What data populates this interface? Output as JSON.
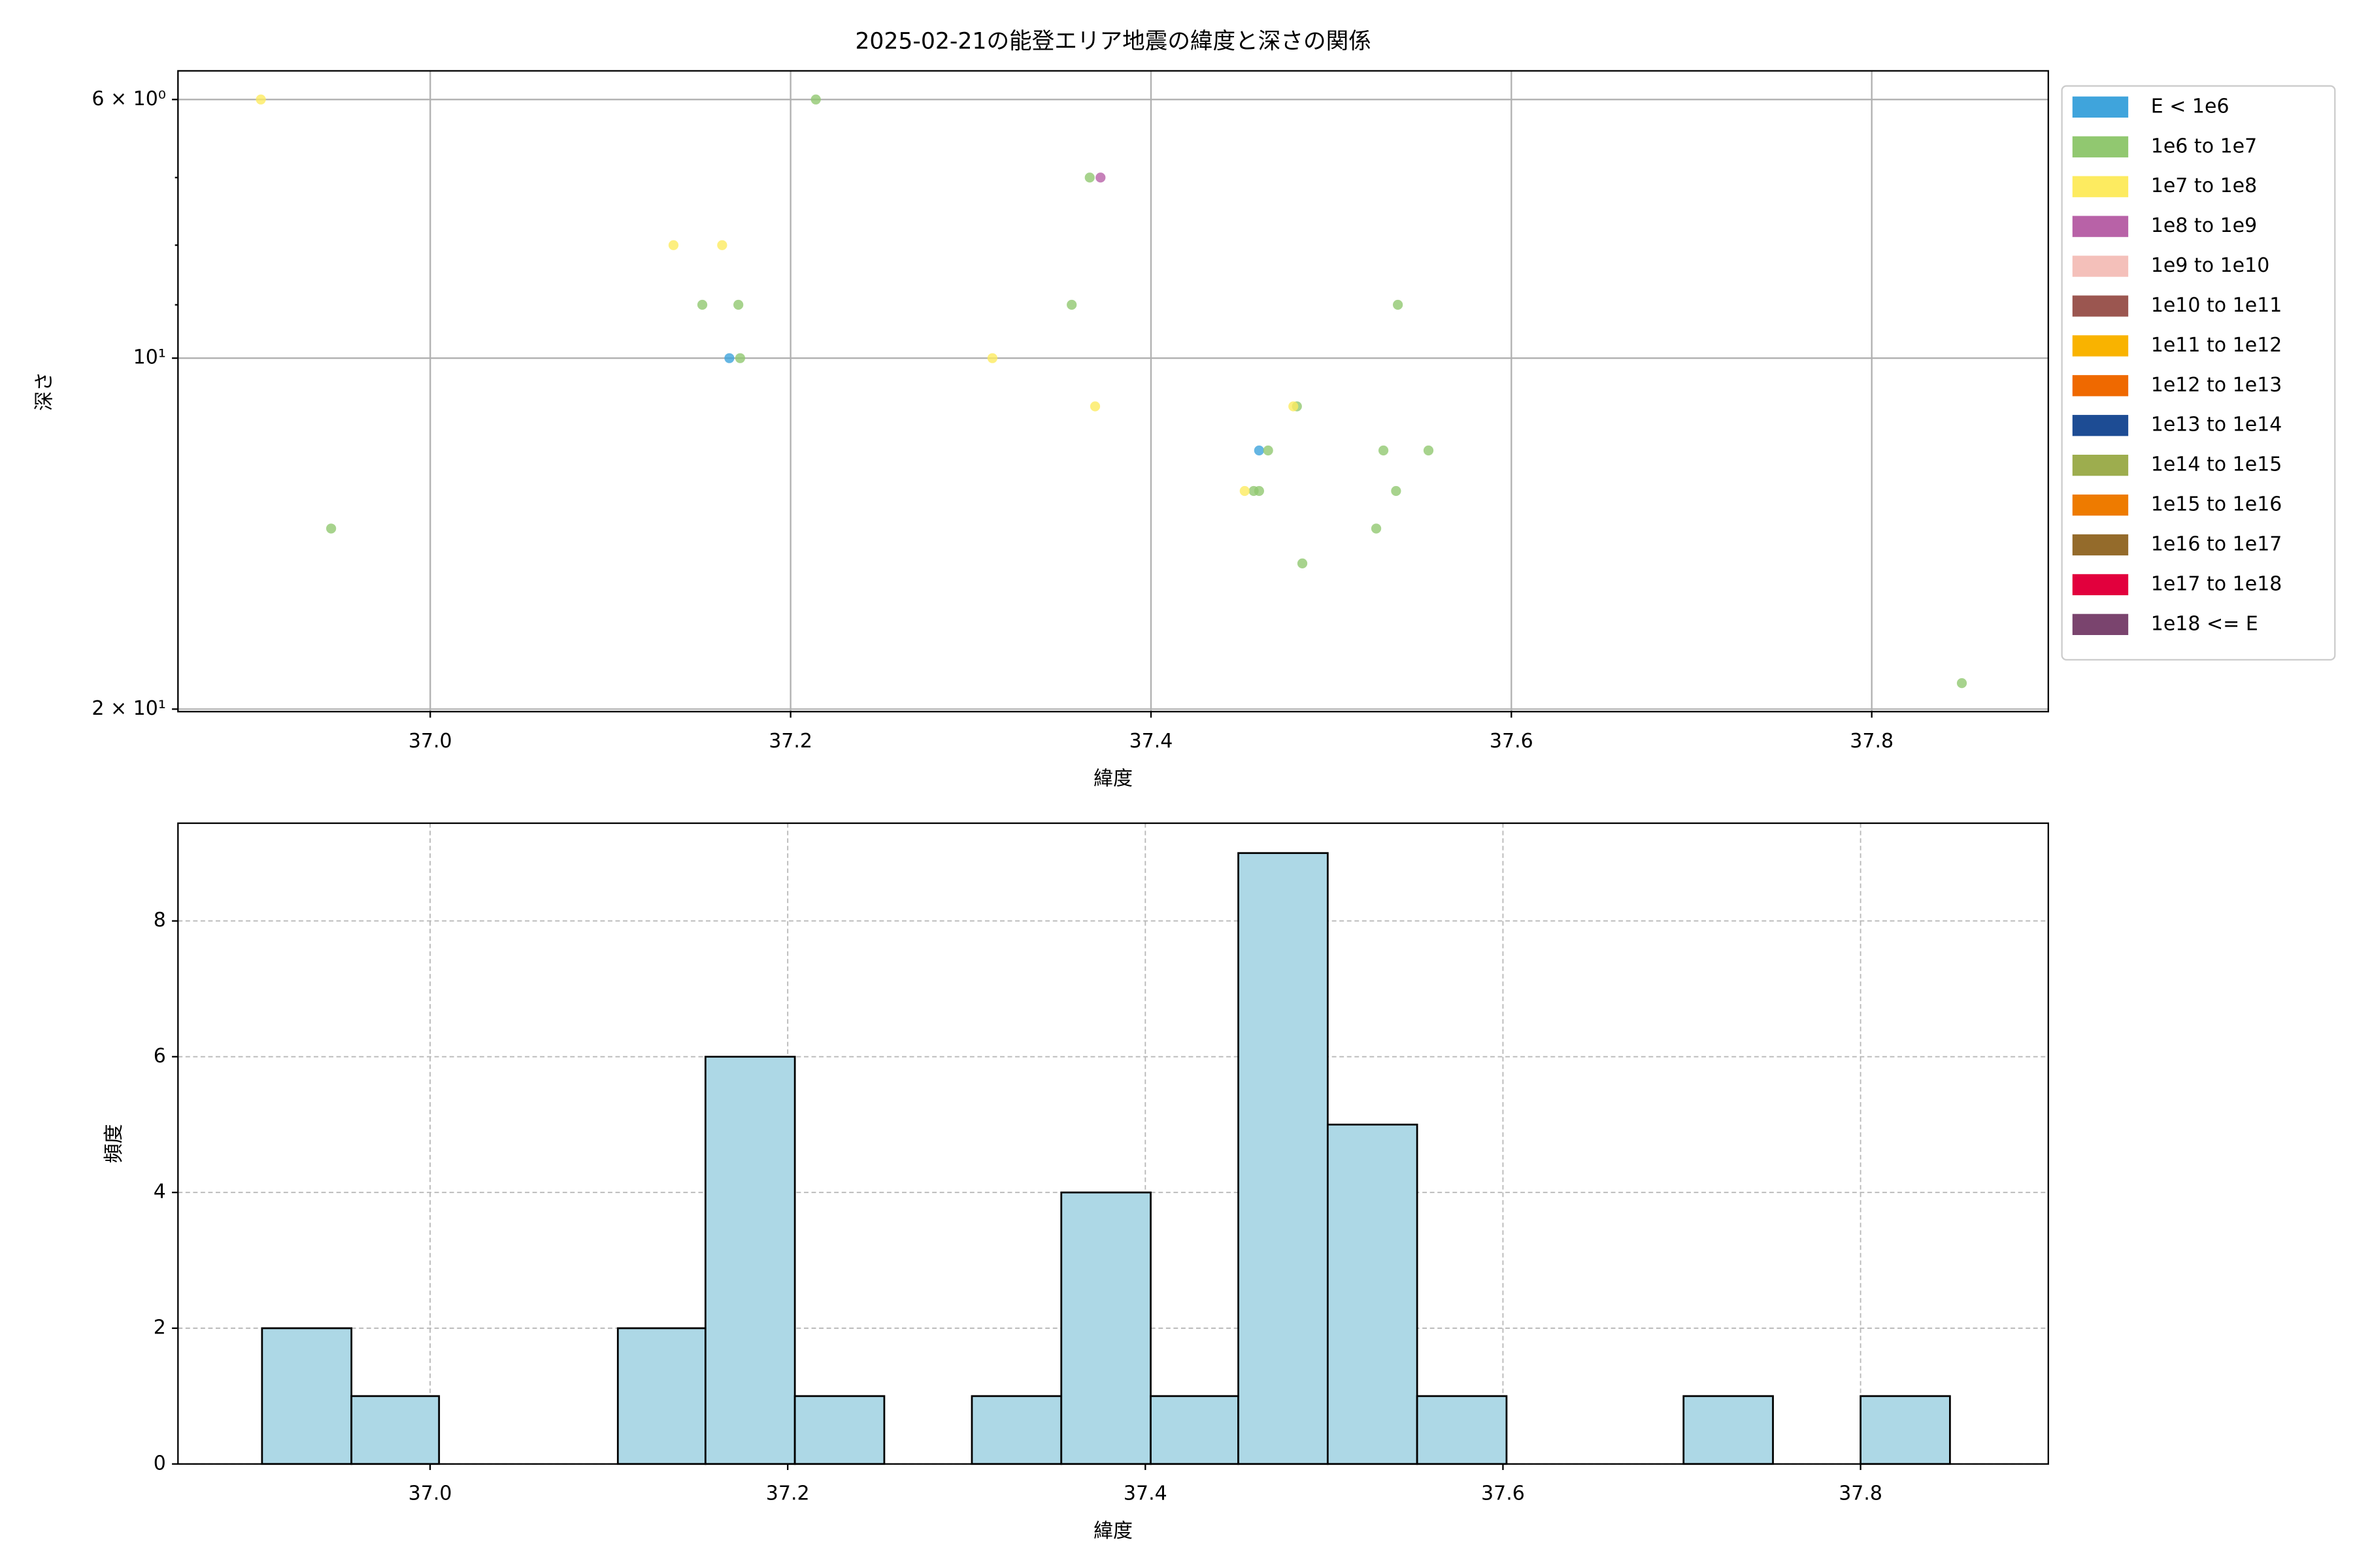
{
  "chart_data": [
    {
      "type": "scatter",
      "title": "2025-02-21の能登エリア地震の緯度と深さの関係",
      "x_label": "緯度",
      "y_label": "深さ",
      "xlim": [
        36.86,
        37.898
      ],
      "xticks": [
        {
          "value": 37,
          "label": "37.0"
        },
        37.2,
        37.4,
        37.6,
        37.8
      ],
      "ylim": [
        20.1,
        5.67
      ],
      "log_y": true,
      "yticks": [
        {
          "value": 6,
          "label": "6 × 10⁰"
        },
        {
          "value": 10,
          "label": "10¹"
        },
        {
          "value": 20,
          "label": "2 × 10¹"
        }
      ],
      "minor_yticks": [
        7,
        8,
        9
      ],
      "grid": true,
      "grid_style": "solid",
      "legend": "outside right",
      "series": [
        {
          "name": "E < 1e6",
          "color": "#3fa4dc",
          "x": [
            37.166,
            37.46
          ],
          "values": [
            10,
            12
          ]
        },
        {
          "name": "1e6 to 1e7",
          "color": "#91c870",
          "x": [
            37.214,
            37.366,
            37.151,
            37.171,
            37.356,
            37.537,
            37.172,
            37.481,
            37.465,
            37.529,
            37.554,
            37.457,
            37.46,
            37.536,
            36.945,
            37.525,
            37.484,
            37.85
          ],
          "values": [
            6,
            7,
            9,
            9,
            9,
            9,
            10,
            11,
            12,
            12,
            12,
            13,
            13,
            13,
            14,
            14,
            15,
            19
          ]
        },
        {
          "name": "1e7 to 1e8",
          "color": "#fdeb60",
          "x": [
            36.906,
            37.135,
            37.162,
            37.312,
            37.369,
            37.479,
            37.452
          ],
          "values": [
            6,
            8,
            8,
            10,
            11,
            11,
            13
          ]
        },
        {
          "name": "1e8 to 1e9",
          "color": "#b862a7",
          "x": [
            37.372
          ],
          "values": [
            7
          ]
        },
        {
          "name": "1e9 to 1e10",
          "color": "#f4c0ba",
          "x": [],
          "values": []
        },
        {
          "name": "1e10 to 1e11",
          "color": "#9b5650",
          "x": [],
          "values": []
        },
        {
          "name": "1e11 to 1e12",
          "color": "#f9b300",
          "x": [],
          "values": []
        },
        {
          "name": "1e12 to 1e13",
          "color": "#ef6900",
          "x": [],
          "values": []
        },
        {
          "name": "1e13 to 1e14",
          "color": "#1d4c94",
          "x": [],
          "values": []
        },
        {
          "name": "1e14 to 1e15",
          "color": "#9dad4e",
          "x": [],
          "values": []
        },
        {
          "name": "1e15 to 1e16",
          "color": "#ee7b00",
          "x": [],
          "values": []
        },
        {
          "name": "1e16 to 1e17",
          "color": "#946b2b",
          "x": [],
          "values": []
        },
        {
          "name": "1e17 to 1e18",
          "color": "#e2003d",
          "x": [],
          "values": []
        },
        {
          "name": "1e18 <= E",
          "color": "#7a446e",
          "x": [],
          "values": []
        }
      ]
    },
    {
      "type": "histogram",
      "x_label": "緯度",
      "y_label": "頻度",
      "xlim": [
        36.859,
        37.905
      ],
      "xticks": [
        {
          "value": 37,
          "label": "37.0"
        },
        37.2,
        37.4,
        37.6,
        37.8
      ],
      "ylim": [
        0,
        9.44
      ],
      "yticks": [
        0,
        2,
        4,
        6,
        8
      ],
      "grid": true,
      "grid_style": "dashed",
      "color": "#add8e6",
      "edgecolor": "#000000",
      "bins": [
        36.906,
        36.956,
        37.005,
        37.055,
        37.105,
        37.154,
        37.204,
        37.254,
        37.303,
        37.353,
        37.403,
        37.452,
        37.502,
        37.552,
        37.602,
        37.651,
        37.701,
        37.751,
        37.8,
        37.85
      ],
      "values": [
        2,
        1,
        0,
        0,
        2,
        6,
        1,
        0,
        1,
        4,
        1,
        9,
        5,
        1,
        0,
        0,
        1,
        0,
        1
      ]
    }
  ]
}
